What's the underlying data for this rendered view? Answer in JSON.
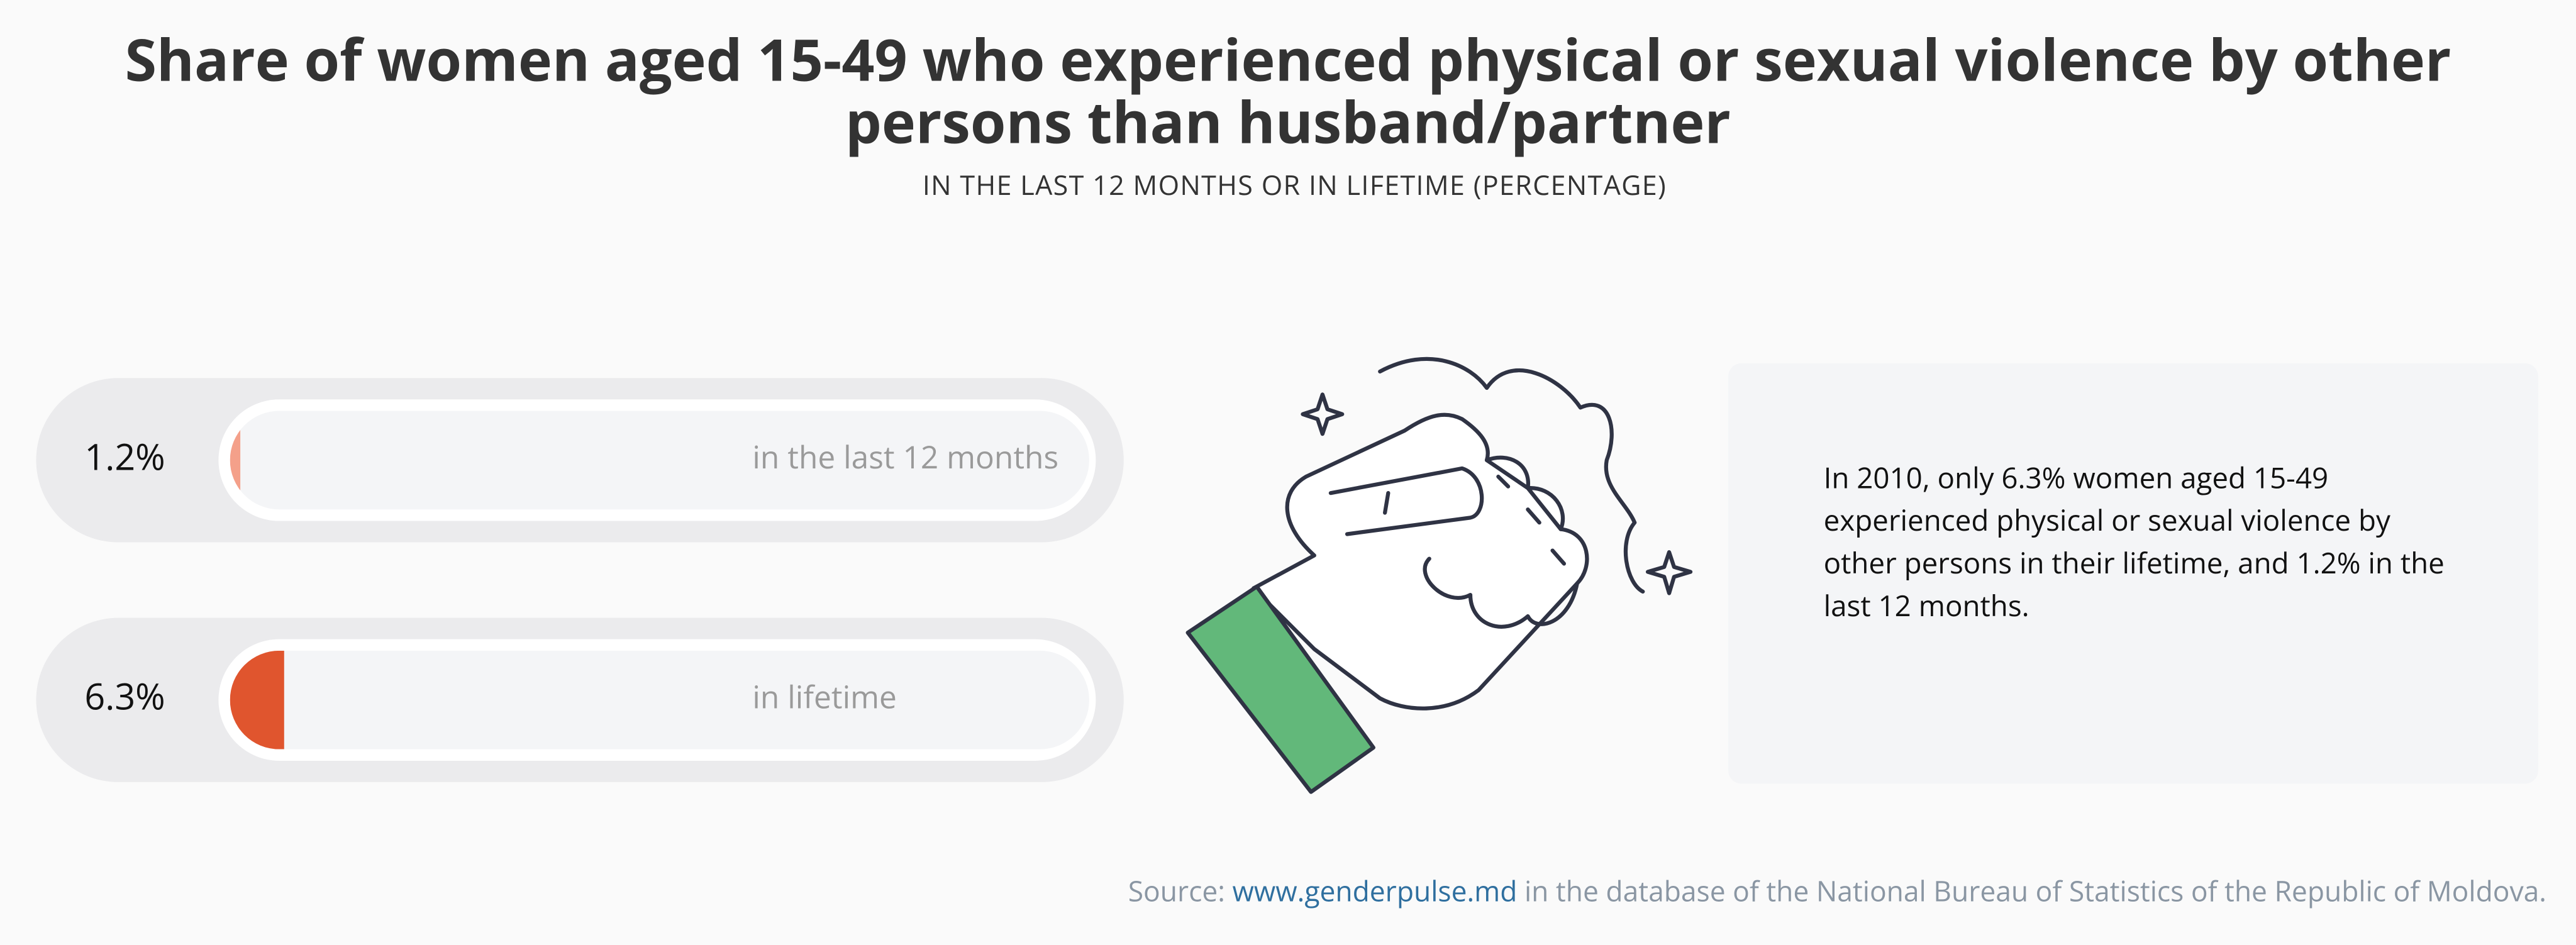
{
  "chart_data": {
    "type": "progress-bar",
    "title": "Share of women aged 15-49 who experienced physical or sexual violence by other persons than husband/partner",
    "subtitle": "IN THE LAST 12 MONTHS OR IN LIFETIME (PERCENTAGE)",
    "categories": [
      "in the last 12 months",
      "in lifetime"
    ],
    "values": [
      1.2,
      6.3
    ],
    "value_labels": [
      "1.2%",
      "6.3%"
    ],
    "colors": [
      "#f4a08a",
      "#e0552e"
    ],
    "xlim": [
      0,
      100
    ],
    "annotation": "In 2010, only 6.3% women aged 15-49 experienced physical or sexual violence by other persons in their lifetime, and 1.2% in the last 12 months.",
    "source": {
      "label": "Source:",
      "link": "www.genderpulse.md",
      "text": "in the database of the National Bureau of Statistics of the Republic of Moldova."
    }
  }
}
